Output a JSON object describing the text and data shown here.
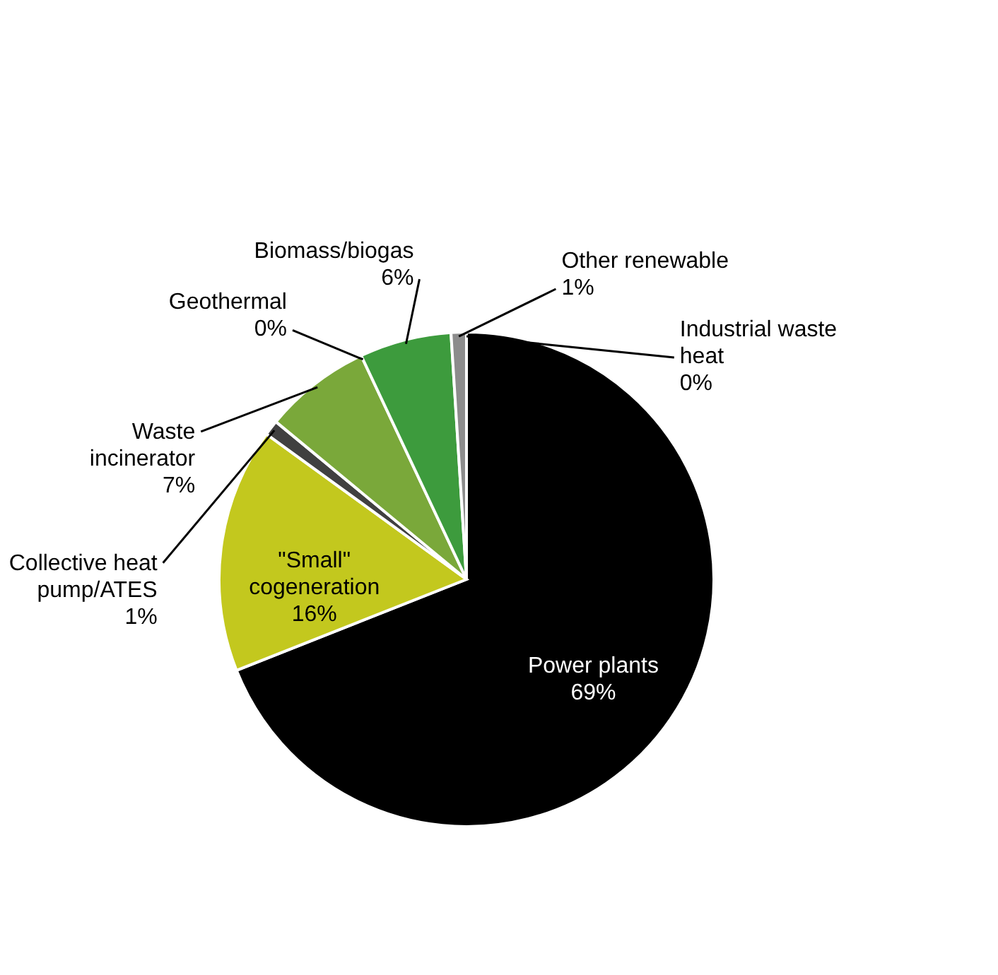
{
  "chart_data": {
    "type": "pie",
    "categories": [
      "Power plants",
      "\"Small\" cogeneration",
      "Collective heat pump/ATES",
      "Waste incinerator",
      "Geothermal",
      "Biomass/biogas",
      "Other renewable",
      "Industrial waste heat"
    ],
    "values": [
      69,
      16,
      1,
      7,
      0,
      6,
      1,
      0
    ],
    "value_labels": [
      "69%",
      "16%",
      "1%",
      "7%",
      "0%",
      "6%",
      "1%",
      "0%"
    ],
    "colors": [
      "#000000",
      "#c3c81e",
      "#404040",
      "#7aa83a",
      "#e0e0e0",
      "#3d9b3d",
      "#8c8c8c",
      "#d8d84a"
    ]
  }
}
